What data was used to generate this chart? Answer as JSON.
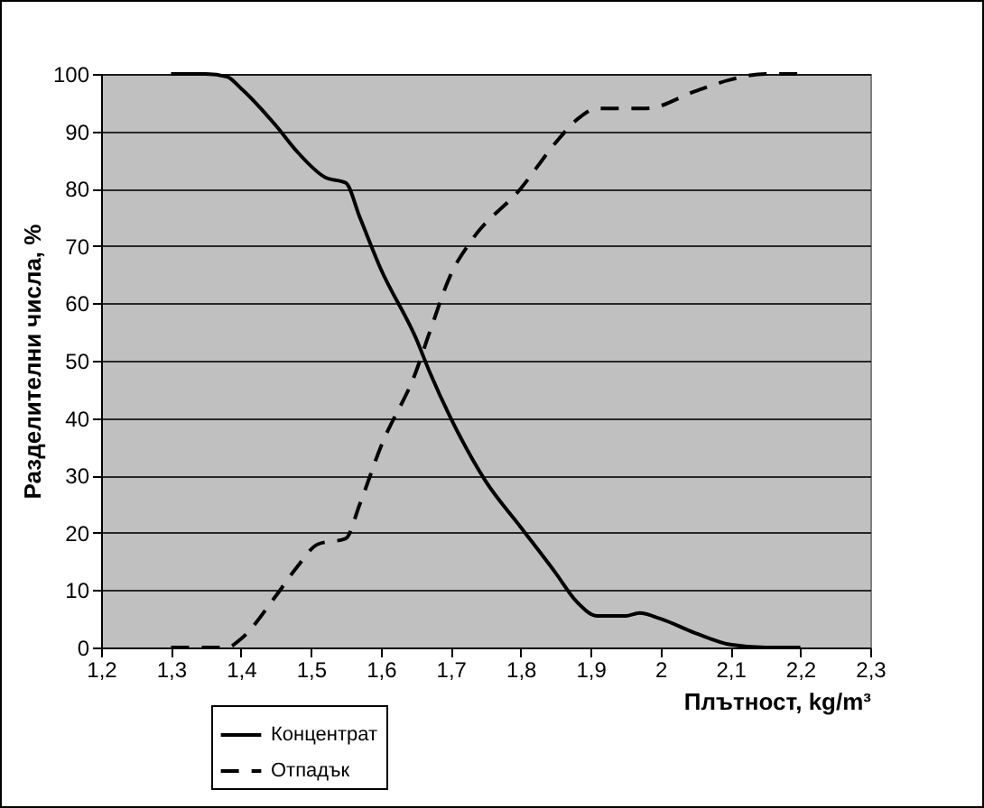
{
  "chart_data": {
    "type": "line",
    "xlabel": "Плътност, kg/m³",
    "ylabel": "Разделителни числа, %",
    "xlim": [
      1.2,
      2.3
    ],
    "xticks": [
      {
        "value": 1.2,
        "label": "1,2"
      },
      {
        "value": 1.3,
        "label": "1,3"
      },
      {
        "value": 1.4,
        "label": "1,4"
      },
      {
        "value": 1.5,
        "label": "1,5"
      },
      {
        "value": 1.6,
        "label": "1,6"
      },
      {
        "value": 1.7,
        "label": "1,7"
      },
      {
        "value": 1.8,
        "label": "1,8"
      },
      {
        "value": 1.9,
        "label": "1,9"
      },
      2,
      {
        "value": 2.1,
        "label": "2,1"
      },
      {
        "value": 2.2,
        "label": "2,2"
      },
      {
        "value": 2.3,
        "label": "2,3"
      }
    ],
    "ylim": [
      0,
      100
    ],
    "yticks": [
      0,
      10,
      20,
      30,
      40,
      50,
      60,
      70,
      80,
      90,
      100
    ],
    "grid": "y",
    "legend": "bottom left",
    "marker": "none",
    "series": [
      {
        "name": "Концентрат",
        "color": "#000000",
        "line_style": "solid",
        "x": [
          1.3,
          1.35,
          1.38,
          1.4,
          1.45,
          1.48,
          1.52,
          1.55,
          1.57,
          1.6,
          1.65,
          1.67,
          1.7,
          1.75,
          1.8,
          1.85,
          1.88,
          1.91,
          1.95,
          1.97,
          2,
          2.05,
          2.1,
          2.15,
          2.2
        ],
        "values": [
          100,
          100,
          99.5,
          97.5,
          91,
          86.5,
          82,
          81,
          75,
          66,
          54,
          48,
          40,
          29,
          21,
          13,
          8,
          5.5,
          5.5,
          6,
          5,
          2.5,
          0.5,
          0,
          0
        ]
      },
      {
        "name": "Отпадък",
        "color": "#000000",
        "line_style": "dashed",
        "x": [
          1.3,
          1.35,
          1.38,
          1.4,
          1.45,
          1.48,
          1.51,
          1.55,
          1.57,
          1.6,
          1.65,
          1.67,
          1.7,
          1.73,
          1.8,
          1.85,
          1.88,
          1.91,
          1.98,
          2.05,
          2.1,
          2.15,
          2.2
        ],
        "values": [
          0,
          0,
          0,
          1.5,
          9,
          14,
          18,
          19,
          25,
          35,
          48,
          55,
          65,
          71,
          80,
          88,
          92,
          94,
          94,
          97,
          99,
          100,
          100
        ]
      }
    ]
  }
}
